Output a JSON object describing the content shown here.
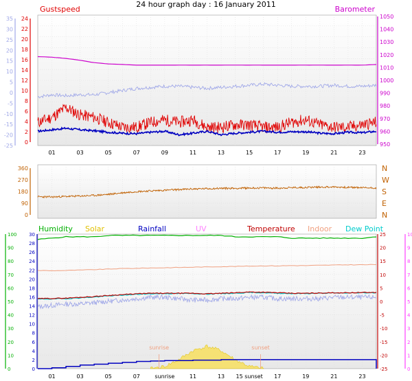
{
  "title": "24 hour graph day : 16 January 2011",
  "colors": {
    "gust": "#e00000",
    "wind": "#0000c0",
    "baro": "#cc00cc",
    "temp_light": "#a0a8e8",
    "dir": "#c06000",
    "humidity": "#00b000",
    "solar": "#e0c000",
    "rainfall": "#0000c0",
    "uv": "#ff80ff",
    "temperature": "#c00000",
    "indoor": "#f0a080",
    "dewpoint": "#00cccc"
  },
  "chart_data": [
    {
      "type": "line",
      "name": "wind-baro-panel",
      "legend": [
        "Gustspeed",
        "Barometer"
      ],
      "x_ticks": [
        "01",
        "03",
        "05",
        "07",
        "09",
        "11",
        "13",
        "15",
        "17",
        "19",
        "21",
        "23"
      ],
      "axis_left_outer": {
        "ticks": [
          "35",
          "30",
          "25",
          "20",
          "15",
          "10",
          "5",
          "0",
          "-5",
          "-10",
          "-15",
          "-20",
          "-25"
        ],
        "range": [
          -25,
          35
        ]
      },
      "axis_left_inner": {
        "ticks": [
          "24",
          "22",
          "20",
          "18",
          "16",
          "14",
          "12",
          "10",
          "8",
          "6",
          "4",
          "2",
          "0"
        ],
        "range": [
          0,
          25
        ]
      },
      "axis_right": {
        "ticks": [
          "1050",
          "1040",
          "1030",
          "1020",
          "1010",
          "1000",
          "990",
          "980",
          "970",
          "960",
          "950"
        ],
        "range": [
          945,
          1050
        ]
      },
      "series": [
        {
          "name": "Barometer",
          "axis": "right",
          "x": [
            0,
            1,
            2,
            3,
            4,
            5,
            6,
            7,
            8,
            9,
            10,
            11,
            12,
            13,
            14,
            15,
            16,
            17,
            18,
            19,
            20,
            21,
            22,
            23,
            24
          ],
          "values": [
            1017,
            1016.5,
            1015.5,
            1014,
            1012,
            1011,
            1010.5,
            1010,
            1010,
            1010,
            1010,
            1010,
            1010,
            1010,
            1010,
            1010,
            1010,
            1010,
            1010,
            1010,
            1010,
            1010,
            1010,
            1010,
            1010.5
          ]
        },
        {
          "name": "Temperature",
          "axis": "outer",
          "x": [
            0,
            1,
            2,
            3,
            4,
            5,
            6,
            7,
            8,
            9,
            10,
            11,
            12,
            13,
            14,
            15,
            16,
            17,
            18,
            19,
            20,
            21,
            22,
            23,
            24
          ],
          "values": [
            -2,
            -1,
            -1.5,
            -1,
            -1,
            0,
            1,
            2,
            2.5,
            3,
            3,
            2.5,
            2,
            2.5,
            3,
            3.5,
            4,
            3.5,
            3,
            3,
            3,
            3.5,
            3,
            3,
            3.5
          ]
        },
        {
          "name": "Gustspeed",
          "axis": "inner",
          "x": [
            0,
            1,
            2,
            3,
            4,
            5,
            6,
            7,
            8,
            9,
            10,
            11,
            12,
            13,
            14,
            15,
            16,
            17,
            18,
            19,
            20,
            21,
            22,
            23,
            24
          ],
          "values": [
            4,
            5,
            7,
            5.5,
            5,
            4,
            3,
            3,
            4,
            4.5,
            4,
            4.5,
            3,
            3,
            3.5,
            3.5,
            3,
            3,
            4,
            4.5,
            3.5,
            3,
            3,
            3.5,
            4
          ]
        },
        {
          "name": "Windspeed",
          "axis": "inner",
          "x": [
            0,
            1,
            2,
            3,
            4,
            5,
            6,
            7,
            8,
            9,
            10,
            11,
            12,
            13,
            14,
            15,
            16,
            17,
            18,
            19,
            20,
            21,
            22,
            23,
            24
          ],
          "values": [
            2.2,
            2.5,
            2.8,
            2.5,
            2.3,
            2,
            1.8,
            1.7,
            2,
            2.2,
            1.5,
            1.8,
            2.2,
            1.5,
            1.8,
            2,
            2.2,
            2,
            2.1,
            2.1,
            1.8,
            1.7,
            2,
            1.9,
            2.2
          ]
        }
      ]
    },
    {
      "type": "line",
      "name": "wind-direction-panel",
      "x_ticks": [
        "01",
        "03",
        "05",
        "07",
        "09",
        "11",
        "13",
        "15",
        "17",
        "19",
        "21",
        "23"
      ],
      "axis_left": {
        "ticks": [
          "360",
          "270",
          "180",
          "90",
          "0"
        ],
        "range": [
          0,
          360
        ]
      },
      "axis_right": {
        "ticks": [
          "N",
          "W",
          "S",
          "E",
          "N"
        ]
      },
      "series": [
        {
          "name": "Direction",
          "x": [
            0,
            1,
            2,
            3,
            4,
            5,
            6,
            7,
            8,
            9,
            10,
            11,
            12,
            13,
            14,
            15,
            16,
            17,
            18,
            19,
            20,
            21,
            22,
            23,
            24
          ],
          "values": [
            140,
            138,
            142,
            145,
            150,
            158,
            170,
            180,
            185,
            190,
            195,
            200,
            202,
            205,
            205,
            207,
            208,
            206,
            210,
            212,
            215,
            215,
            212,
            210,
            208
          ]
        }
      ]
    },
    {
      "type": "line",
      "name": "multi-sensor-panel",
      "legend": [
        "Humidity",
        "Solar",
        "Rainfall",
        "UV",
        "Temperature",
        "Indoor",
        "Dew Point"
      ],
      "annotations": [
        "sunrise",
        "sunset"
      ],
      "x_ticks": [
        "01",
        "03",
        "05",
        "07",
        "sunrise",
        "11",
        "13",
        "15 sunset",
        "17",
        "19",
        "21",
        "23"
      ],
      "axis_humidity": {
        "ticks": [
          "100",
          "90",
          "80",
          "70",
          "60",
          "50",
          "40",
          "30",
          "20",
          "10",
          "0"
        ],
        "range": [
          0,
          100
        ]
      },
      "axis_rain": {
        "ticks": [
          "30",
          "28",
          "26",
          "24",
          "22",
          "20",
          "18",
          "16",
          "14",
          "12",
          "10",
          "8",
          "6",
          "4",
          "2",
          "0"
        ],
        "range": [
          0,
          30
        ]
      },
      "axis_temp": {
        "ticks": [
          "25",
          "20",
          "15",
          "10",
          "5",
          "0",
          "-5",
          "-10",
          "-15",
          "-20",
          "-25"
        ],
        "range": [
          -25,
          25
        ]
      },
      "axis_uv": {
        "ticks": [
          "10",
          "9",
          "8",
          "7",
          "6",
          "5",
          "4",
          "3",
          "2",
          "1",
          "0"
        ],
        "range": [
          0,
          10
        ]
      },
      "series": [
        {
          "name": "Humidity",
          "x": [
            0,
            1,
            2,
            3,
            4,
            5,
            6,
            7,
            8,
            9,
            10,
            11,
            12,
            13,
            14,
            15,
            16,
            17,
            18,
            19,
            20,
            21,
            22,
            23,
            24
          ],
          "values": [
            96,
            97,
            98,
            98,
            98,
            99,
            99,
            99,
            99,
            99,
            99,
            99,
            99,
            99,
            98,
            98,
            98,
            98,
            97,
            97,
            97,
            97,
            97,
            97,
            98
          ]
        },
        {
          "name": "Indoor",
          "x": [
            0,
            1,
            2,
            3,
            4,
            5,
            6,
            7,
            8,
            9,
            10,
            11,
            12,
            13,
            14,
            15,
            16,
            17,
            18,
            19,
            20,
            21,
            22,
            23,
            24
          ],
          "values": [
            11.5,
            11.4,
            11.5,
            11.6,
            11.8,
            12,
            12.2,
            12.3,
            12.4,
            12.5,
            12.6,
            12.7,
            12.8,
            12.9,
            13,
            13.1,
            13.2,
            13.2,
            13.3,
            13.3,
            13.4,
            13.5,
            13.6,
            13.6,
            13.7
          ]
        },
        {
          "name": "Temperature",
          "x": [
            0,
            1,
            2,
            3,
            4,
            5,
            6,
            7,
            8,
            9,
            10,
            11,
            12,
            13,
            14,
            15,
            16,
            17,
            18,
            19,
            20,
            21,
            22,
            23,
            24
          ],
          "values": [
            1,
            1.1,
            1.2,
            1.5,
            1.8,
            2.2,
            2.5,
            2.8,
            3,
            3,
            3,
            3,
            2.8,
            3,
            3.2,
            3.5,
            3.4,
            3.2,
            3,
            3,
            3.1,
            3.2,
            3.2,
            3.3,
            3.3
          ]
        },
        {
          "name": "Dew Point",
          "x": [
            0,
            1,
            2,
            3,
            4,
            5,
            6,
            7,
            8,
            9,
            10,
            11,
            12,
            13,
            14,
            15,
            16,
            17,
            18,
            19,
            20,
            21,
            22,
            23,
            24
          ],
          "values": [
            0.8,
            0.9,
            1,
            1.3,
            1.6,
            2,
            2.3,
            2.6,
            2.8,
            2.9,
            2.9,
            2.9,
            2.7,
            2.9,
            3,
            3.3,
            3.2,
            3,
            2.9,
            2.9,
            3,
            3.1,
            3.1,
            3.2,
            3.2
          ]
        },
        {
          "name": "Wind chill",
          "x": [
            0,
            1,
            2,
            3,
            4,
            5,
            6,
            7,
            8,
            9,
            10,
            11,
            12,
            13,
            14,
            15,
            16,
            17,
            18,
            19,
            20,
            21,
            22,
            23,
            24
          ],
          "values": [
            -2,
            -1.5,
            -1,
            -1,
            -0.5,
            0,
            0.5,
            1,
            1.5,
            1.5,
            1,
            0.5,
            0.5,
            1,
            1,
            1.5,
            1.5,
            1,
            1,
            1,
            1,
            1.5,
            1.5,
            1.5,
            1.5
          ]
        },
        {
          "name": "Rainfall",
          "x": [
            0,
            1,
            2,
            3,
            4,
            5,
            6,
            7,
            8,
            9,
            10,
            11,
            12,
            13,
            14,
            15,
            16,
            17,
            18,
            19,
            20,
            21,
            22,
            23,
            24
          ],
          "values": [
            0,
            0.2,
            0.5,
            0.8,
            1,
            1.2,
            1.4,
            1.6,
            1.7,
            1.8,
            1.8,
            1.9,
            1.9,
            2,
            2,
            2,
            2,
            2,
            2,
            2,
            2,
            2,
            2,
            2,
            0
          ]
        },
        {
          "name": "Solar",
          "x": [
            8,
            9,
            10,
            11,
            12,
            13,
            14,
            15,
            16
          ],
          "values": [
            0,
            0.5,
            2,
            4,
            5,
            4,
            2,
            0.5,
            0
          ]
        }
      ]
    }
  ]
}
